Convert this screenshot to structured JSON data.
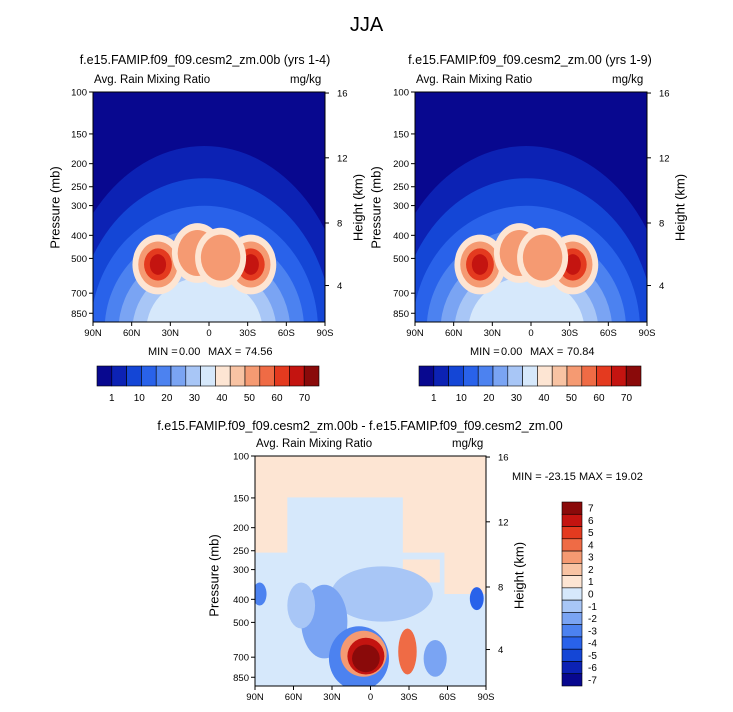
{
  "figure_title": "JJA",
  "colors": {
    "rain_scale": [
      "#08088f",
      "#0c22b4",
      "#1446d6",
      "#2962ea",
      "#4c82f0",
      "#7aa4f3",
      "#a8c6f6",
      "#d6e8fb",
      "#fde5d3",
      "#f8c3a3",
      "#f59a72",
      "#ef6b45",
      "#e43a1f",
      "#c41410",
      "#8a0a0a"
    ],
    "diff_scale": [
      "#08088f",
      "#0c22b4",
      "#1446d6",
      "#2962ea",
      "#4c82f0",
      "#7aa4f3",
      "#a8c6f6",
      "#d6e8fb",
      "#fde5d3",
      "#f8c3a3",
      "#f59a72",
      "#ef6b45",
      "#e43a1f",
      "#c41410",
      "#8a0a0a"
    ]
  },
  "chart_data": [
    {
      "type": "heatmap",
      "title": "f.e15.FAMIP.f09_f09.cesm2_zm.00b (yrs 1-4)",
      "subtitle_left": "Avg. Rain Mixing Ratio",
      "subtitle_right": "mg/kg",
      "xlabel": "",
      "ylabel": "Pressure (mb)",
      "ylabel_right": "Height (km)",
      "x_ticks": [
        "90N",
        "60N",
        "30N",
        "0",
        "30S",
        "60S",
        "90S"
      ],
      "y_ticks": [
        "100",
        "150",
        "200",
        "250",
        "300",
        "400",
        "500",
        "700",
        "850"
      ],
      "y_ticks_right": [
        "16",
        "12",
        "8",
        "4"
      ],
      "min_label": "MIN =",
      "min": "0.00",
      "max_label": "MAX =",
      "max": "74.56",
      "colorbar_labels": [
        "1",
        "10",
        "20",
        "30",
        "40",
        "50",
        "60",
        "70"
      ]
    },
    {
      "type": "heatmap",
      "title": "f.e15.FAMIP.f09_f09.cesm2_zm.00 (yrs 1-9)",
      "subtitle_left": "Avg. Rain Mixing Ratio",
      "subtitle_right": "mg/kg",
      "xlabel": "",
      "ylabel": "Pressure (mb)",
      "ylabel_right": "Height (km)",
      "x_ticks": [
        "90N",
        "60N",
        "30N",
        "0",
        "30S",
        "60S",
        "90S"
      ],
      "y_ticks": [
        "100",
        "150",
        "200",
        "250",
        "300",
        "400",
        "500",
        "700",
        "850"
      ],
      "y_ticks_right": [
        "16",
        "12",
        "8",
        "4"
      ],
      "min_label": "MIN =",
      "min": "0.00",
      "max_label": "MAX =",
      "max": "70.84",
      "colorbar_labels": [
        "1",
        "10",
        "20",
        "30",
        "40",
        "50",
        "60",
        "70"
      ]
    },
    {
      "type": "heatmap",
      "title": "f.e15.FAMIP.f09_f09.cesm2_zm.00b - f.e15.FAMIP.f09_f09.cesm2_zm.00",
      "subtitle_left": "Avg. Rain Mixing Ratio",
      "subtitle_right": "mg/kg",
      "xlabel": "",
      "ylabel": "Pressure (mb)",
      "ylabel_right": "Height (km)",
      "x_ticks": [
        "90N",
        "60N",
        "30N",
        "0",
        "30S",
        "60S",
        "90S"
      ],
      "y_ticks": [
        "100",
        "150",
        "200",
        "250",
        "300",
        "400",
        "500",
        "700",
        "850"
      ],
      "y_ticks_right": [
        "16",
        "12",
        "8",
        "4"
      ],
      "stats": "MIN = -23.15  MAX = 19.02",
      "colorbar_labels": [
        "7",
        "6",
        "5",
        "4",
        "3",
        "2",
        "1",
        "0",
        "-1",
        "-2",
        "-3",
        "-4",
        "-5",
        "-6",
        "-7"
      ]
    }
  ]
}
